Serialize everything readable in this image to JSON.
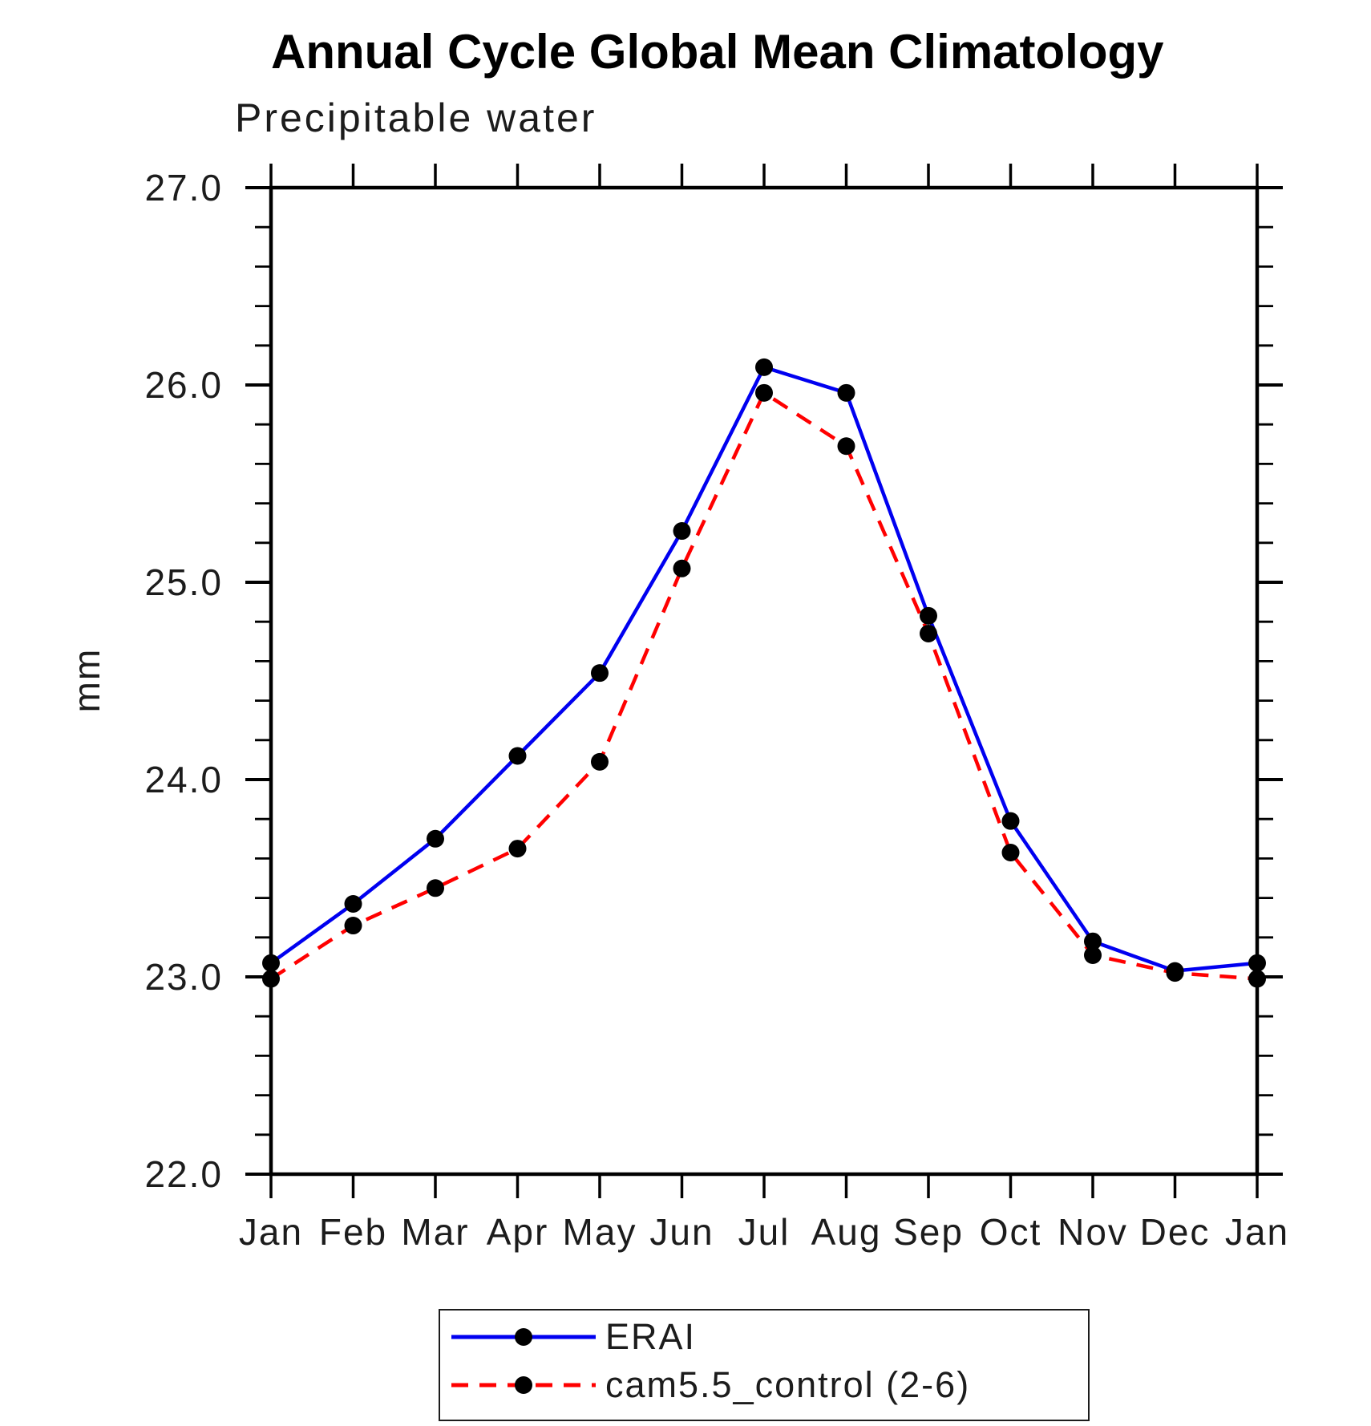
{
  "page": {
    "title": "Annual Cycle Global Mean Climatology",
    "subtitle": "Precipitable water",
    "ylabel": "mm"
  },
  "chart_data": {
    "type": "line",
    "title": "Annual Cycle Global Mean Climatology",
    "subtitle": "Precipitable water",
    "xlabel": "",
    "ylabel": "mm",
    "categories": [
      "Jan",
      "Feb",
      "Mar",
      "Apr",
      "May",
      "Jun",
      "Jul",
      "Aug",
      "Sep",
      "Oct",
      "Nov",
      "Dec",
      "Jan"
    ],
    "series": [
      {
        "name": "ERAI",
        "color": "#0000f0",
        "style": "solid",
        "marker": "filled-circle",
        "values": [
          23.07,
          23.37,
          23.7,
          24.12,
          24.54,
          25.26,
          26.09,
          25.96,
          24.83,
          23.79,
          23.18,
          23.03,
          23.07
        ]
      },
      {
        "name": "cam5.5_control (2-6)",
        "color": "#ff0000",
        "style": "dashed",
        "marker": "filled-circle",
        "values": [
          22.99,
          23.26,
          23.45,
          23.65,
          24.09,
          25.07,
          25.96,
          25.69,
          24.74,
          23.63,
          23.11,
          23.02,
          22.99
        ]
      }
    ],
    "ylim": [
      22.0,
      27.0
    ],
    "yticks": {
      "major_step": 1.0,
      "minor_step": 0.2,
      "labels": [
        "22.0",
        "23.0",
        "24.0",
        "25.0",
        "26.0",
        "27.0"
      ]
    },
    "marker_color": "#000000",
    "grid": false,
    "legend_position": "bottom-center"
  }
}
